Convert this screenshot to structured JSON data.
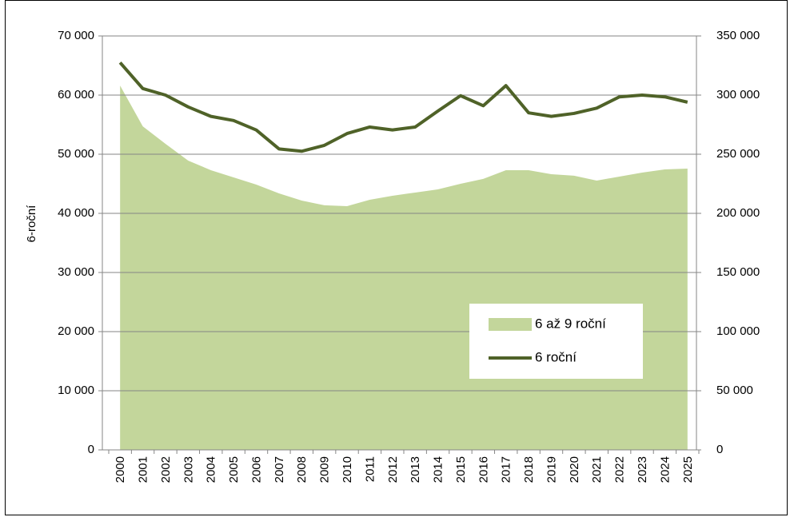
{
  "chart_data": {
    "type": "area-line",
    "y_label": "6-roční",
    "categories": [
      "2000",
      "2001",
      "2002",
      "2003",
      "2004",
      "2005",
      "2006",
      "2007",
      "2008",
      "2009",
      "2010",
      "2011",
      "2012",
      "2013",
      "2014",
      "2015",
      "2016",
      "2017",
      "2018",
      "2019",
      "2020",
      "2021",
      "2022",
      "2023",
      "2024",
      "2025"
    ],
    "series": [
      {
        "name": "6 až 9 roční",
        "type": "area",
        "axis": "y2",
        "color": "#c3d69b",
        "values": [
          308000,
          273600,
          258800,
          244600,
          236500,
          230400,
          224300,
          216900,
          210800,
          206800,
          206100,
          211500,
          214900,
          217600,
          220300,
          225000,
          229100,
          236500,
          236500,
          233100,
          231800,
          227700,
          231100,
          234500,
          237200,
          237800
        ]
      },
      {
        "name": "6 roční",
        "type": "line",
        "axis": "y",
        "color": "#4f6228",
        "values": [
          65500,
          61100,
          60000,
          58000,
          56400,
          55700,
          54100,
          50900,
          50500,
          51500,
          53500,
          54600,
          54100,
          54600,
          57300,
          59900,
          58200,
          61600,
          57000,
          56400,
          56900,
          57800,
          59700,
          60000,
          59700,
          58800
        ]
      }
    ],
    "ylim": [
      0,
      70000
    ],
    "yticks": [
      0,
      {
        "value": 10000,
        "label": "10 000"
      },
      {
        "value": 20000,
        "label": "20 000"
      },
      {
        "value": 30000,
        "label": "30 000"
      },
      {
        "value": 40000,
        "label": "40 000"
      },
      {
        "value": 50000,
        "label": "50 000"
      },
      {
        "value": 60000,
        "label": "60 000"
      },
      {
        "value": 70000,
        "label": "70 000"
      }
    ],
    "y2lim": [
      0,
      350000
    ],
    "y2ticks": [
      0,
      {
        "value": 50000,
        "label": "50 000"
      },
      {
        "value": 100000,
        "label": "100 000"
      },
      {
        "value": 150000,
        "label": "150 000"
      },
      {
        "value": 200000,
        "label": "200 000"
      },
      {
        "value": 250000,
        "label": "250 000"
      },
      {
        "value": 300000,
        "label": "300 000"
      },
      {
        "value": 350000,
        "label": "350 000"
      }
    ],
    "grid": true,
    "legend_position": "lower right"
  }
}
